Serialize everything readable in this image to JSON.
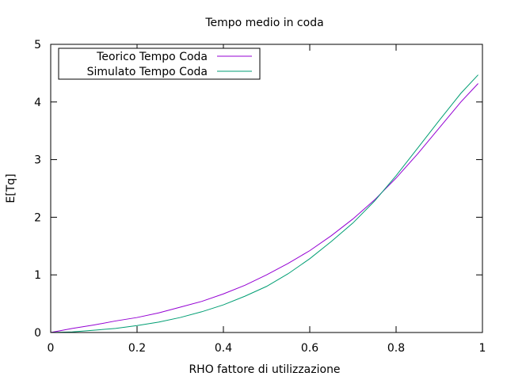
{
  "chart_data": {
    "type": "line",
    "title": "Tempo medio in coda",
    "xlabel": "RHO fattore di utilizzazione",
    "ylabel": "E[Tq]",
    "xlim": [
      0,
      1
    ],
    "ylim": [
      0,
      5
    ],
    "xticks": [
      0,
      0.2,
      0.4,
      0.6,
      0.8,
      1
    ],
    "xtick_labels": [
      "0",
      "0.2",
      "0.4",
      "0.6",
      "0.8",
      "1"
    ],
    "yticks": [
      0,
      1,
      2,
      3,
      4,
      5
    ],
    "ytick_labels": [
      "0",
      "1",
      "2",
      "3",
      "4",
      "5"
    ],
    "grid": false,
    "legend_position": "top-left",
    "x": [
      0,
      0.05,
      0.1,
      0.15,
      0.2,
      0.25,
      0.3,
      0.35,
      0.4,
      0.45,
      0.5,
      0.55,
      0.6,
      0.65,
      0.7,
      0.75,
      0.8,
      0.85,
      0.9,
      0.95,
      0.99
    ],
    "series": [
      {
        "name": "Teorico Tempo Coda",
        "color": "#9400d3",
        "values": [
          0,
          0.07,
          0.13,
          0.2,
          0.26,
          0.34,
          0.44,
          0.54,
          0.67,
          0.82,
          1.0,
          1.2,
          1.42,
          1.68,
          1.97,
          2.3,
          2.68,
          3.1,
          3.55,
          4.0,
          4.32
        ]
      },
      {
        "name": "Simulato Tempo Coda",
        "color": "#009e73",
        "values": [
          0,
          0.01,
          0.04,
          0.07,
          0.12,
          0.18,
          0.26,
          0.36,
          0.48,
          0.63,
          0.8,
          1.02,
          1.28,
          1.58,
          1.9,
          2.28,
          2.72,
          3.2,
          3.68,
          4.15,
          4.47
        ]
      }
    ]
  }
}
